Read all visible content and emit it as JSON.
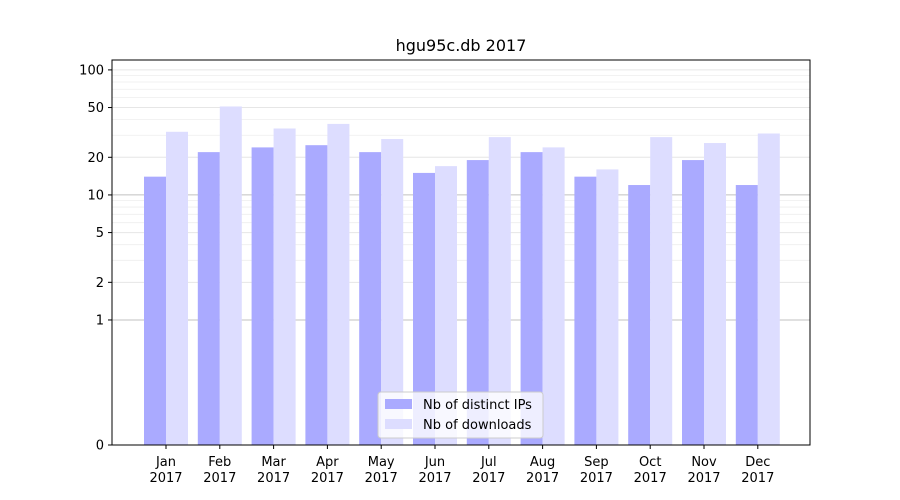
{
  "chart_data": {
    "type": "bar",
    "title": "hgu95c.db 2017",
    "categories": [
      "Jan\n2017",
      "Feb\n2017",
      "Mar\n2017",
      "Apr\n2017",
      "May\n2017",
      "Jun\n2017",
      "Jul\n2017",
      "Aug\n2017",
      "Sep\n2017",
      "Oct\n2017",
      "Nov\n2017",
      "Dec\n2017"
    ],
    "series": [
      {
        "name": "Nb of distinct IPs",
        "color": "#aaaaff",
        "values": [
          14,
          22,
          24,
          25,
          22,
          15,
          19,
          22,
          14,
          12,
          19,
          12
        ]
      },
      {
        "name": "Nb of downloads",
        "color": "#ddddff",
        "values": [
          32,
          51,
          34,
          37,
          28,
          17,
          29,
          24,
          16,
          29,
          26,
          31
        ]
      }
    ],
    "yscale": "symlog",
    "yticks": [
      0,
      1,
      2,
      5,
      10,
      20,
      50,
      100
    ],
    "ylim": [
      0,
      120
    ],
    "grid": true,
    "legend_position": "bottom-center"
  }
}
